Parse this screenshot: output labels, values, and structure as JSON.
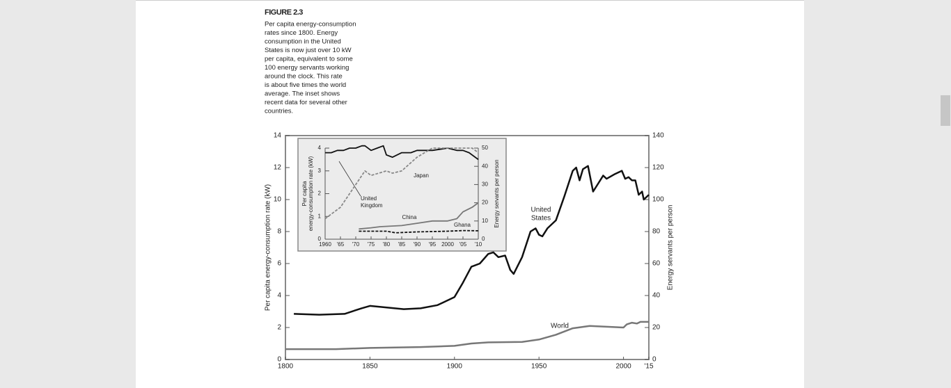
{
  "figure_label": "FIGURE 2.3",
  "caption_lines": [
    "Per capita energy-consumption",
    "rates since 1800. Energy",
    "consumption in the United",
    "States is now just over 10 kW",
    "per capita, equivalent to some",
    "100 energy servants working",
    "around the clock. This rate",
    "is about five times the world",
    "average. The inset shows",
    "recent data for several other",
    "countries."
  ],
  "chart_data": [
    {
      "type": "line",
      "ylabel": "Per capita energy-consumption rate (kW)",
      "y2label": "Energy servants per person",
      "xlim": [
        1800,
        2015
      ],
      "xticks": [
        1800,
        1850,
        1900,
        1950,
        2000,
        {
          "value": 2015,
          "label": "'15"
        }
      ],
      "ylim": [
        0,
        14
      ],
      "yticks": [
        0,
        2,
        4,
        6,
        8,
        10,
        12,
        14
      ],
      "y2lim": [
        0,
        140
      ],
      "y2ticks": [
        0,
        20,
        40,
        60,
        80,
        100,
        120,
        140
      ],
      "series": [
        {
          "name": "United States",
          "color": "#111111",
          "dash": false,
          "x": [
            1805,
            1820,
            1835,
            1845,
            1850,
            1860,
            1870,
            1880,
            1890,
            1900,
            1905,
            1910,
            1915,
            1920,
            1923,
            1926,
            1930,
            1933,
            1935,
            1940,
            1945,
            1948,
            1950,
            1952,
            1955,
            1960,
            1965,
            1970,
            1972,
            1974,
            1976,
            1979,
            1982,
            1985,
            1988,
            1990,
            1995,
            1999,
            2001,
            2003,
            2005,
            2007,
            2009,
            2011,
            2012,
            2015
          ],
          "values": [
            2.85,
            2.8,
            2.85,
            3.2,
            3.35,
            3.25,
            3.15,
            3.2,
            3.4,
            3.9,
            4.8,
            5.8,
            6.0,
            6.6,
            6.7,
            6.4,
            6.5,
            5.6,
            5.35,
            6.4,
            8.0,
            8.2,
            7.8,
            7.7,
            8.2,
            8.7,
            10.2,
            11.8,
            12.0,
            11.2,
            11.9,
            12.1,
            10.5,
            11.0,
            11.5,
            11.3,
            11.6,
            11.8,
            11.3,
            11.4,
            11.2,
            11.2,
            10.3,
            10.5,
            10.0,
            10.3
          ]
        },
        {
          "name": "World",
          "color": "#777777",
          "dash": false,
          "x": [
            1800,
            1830,
            1850,
            1880,
            1900,
            1910,
            1920,
            1940,
            1950,
            1960,
            1970,
            1980,
            1990,
            2000,
            2002,
            2005,
            2008,
            2010,
            2015
          ],
          "values": [
            0.65,
            0.65,
            0.72,
            0.78,
            0.85,
            1.0,
            1.07,
            1.1,
            1.25,
            1.55,
            1.95,
            2.1,
            2.05,
            2.0,
            2.2,
            2.3,
            2.25,
            2.35,
            2.35
          ]
        }
      ],
      "annotations": [
        [
          "United",
          "States"
        ],
        [
          "World"
        ]
      ]
    },
    {
      "type": "line",
      "ylabel_lines": [
        "Per capita",
        "energy-consumption rate (kW)"
      ],
      "y2label": "Energy servants per person",
      "xlim": [
        1960,
        2010
      ],
      "xticks": [
        1960,
        {
          "value": 1965,
          "label": "'65"
        },
        {
          "value": 1970,
          "label": "'70"
        },
        {
          "value": 1975,
          "label": "'75"
        },
        {
          "value": 1980,
          "label": "'80"
        },
        {
          "value": 1985,
          "label": "'85"
        },
        {
          "value": 1990,
          "label": "'90"
        },
        {
          "value": 1995,
          "label": "'95"
        },
        2000,
        {
          "value": 2005,
          "label": "'05"
        },
        {
          "value": 2010,
          "label": "'10"
        }
      ],
      "ylim": [
        0,
        4
      ],
      "yticks": [
        0,
        1,
        2,
        3,
        4
      ],
      "y2lim": [
        0,
        50
      ],
      "y2ticks": [
        0,
        10,
        20,
        30,
        40,
        50
      ],
      "series": [
        {
          "name": "United Kingdom",
          "color": "#111111",
          "dash": false,
          "x": [
            1960,
            1962,
            1964,
            1966,
            1968,
            1970,
            1972,
            1973,
            1975,
            1977,
            1979,
            1980,
            1982,
            1985,
            1988,
            1990,
            1995,
            2000,
            2003,
            2005,
            2007,
            2009,
            2010
          ],
          "values": [
            3.8,
            3.8,
            3.9,
            3.9,
            4.0,
            4.0,
            4.1,
            4.1,
            3.9,
            4.0,
            4.1,
            3.7,
            3.6,
            3.8,
            3.8,
            3.9,
            3.9,
            4.0,
            3.9,
            3.9,
            3.8,
            3.6,
            3.5
          ]
        },
        {
          "name": "Japan",
          "color": "#888888",
          "dash": true,
          "x": [
            1960,
            1965,
            1970,
            1973,
            1975,
            1980,
            1982,
            1985,
            1990,
            1995,
            2000,
            2005,
            2008,
            2010
          ],
          "values": [
            0.9,
            1.4,
            2.4,
            3.0,
            2.8,
            3.0,
            2.9,
            3.0,
            3.6,
            4.0,
            4.0,
            4.0,
            4.0,
            3.8
          ]
        },
        {
          "name": "China",
          "color": "#777777",
          "dash": false,
          "x": [
            1971,
            1975,
            1978,
            1985,
            1990,
            1995,
            2000,
            2003,
            2005,
            2008,
            2010
          ],
          "values": [
            0.45,
            0.5,
            0.55,
            0.6,
            0.7,
            0.8,
            0.8,
            0.9,
            1.2,
            1.4,
            1.6
          ]
        },
        {
          "name": "Ghana",
          "color": "#111111",
          "dash": true,
          "x": [
            1971,
            1980,
            1983,
            1990,
            2000,
            2005,
            2010
          ],
          "values": [
            0.35,
            0.35,
            0.28,
            0.32,
            0.35,
            0.38,
            0.37
          ]
        }
      ],
      "annotations": [
        [
          "Japan"
        ],
        [
          "United",
          "Kingdom"
        ],
        [
          "China"
        ],
        [
          "Ghana"
        ]
      ]
    }
  ]
}
